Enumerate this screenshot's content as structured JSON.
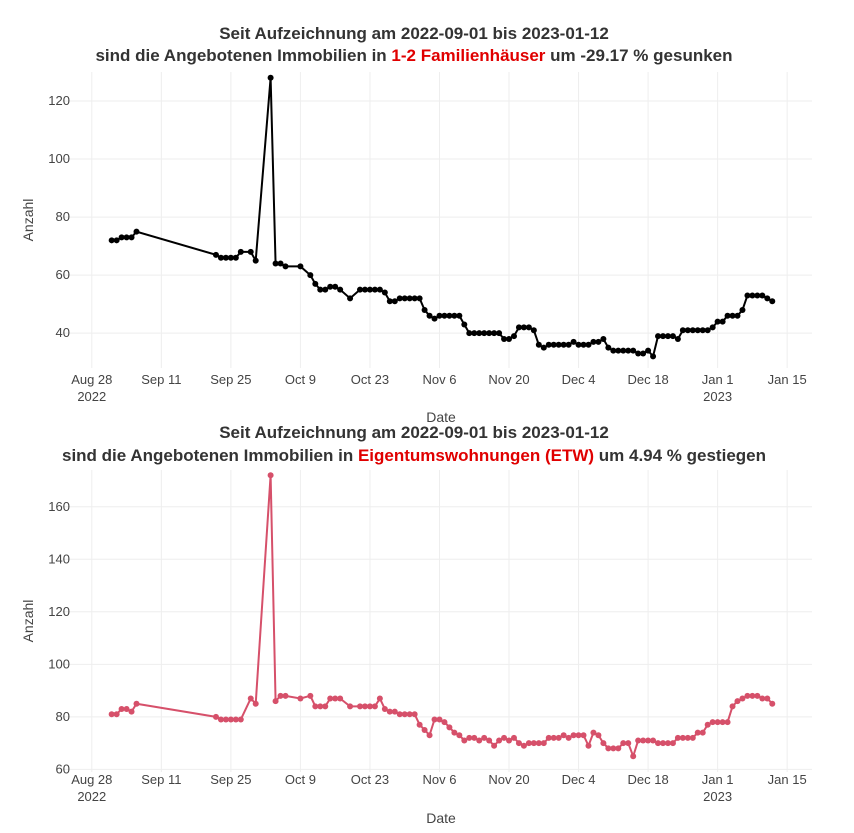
{
  "chart_data": [
    {
      "type": "line",
      "title": "Seit Aufzeichnung am 2022-09-01 bis  2023-01-12",
      "subtitle_parts": [
        {
          "text": "sind die Angebotenen Immobilien in "
        },
        {
          "text": "1-2 Familienhäuser",
          "color": "#e00000"
        },
        {
          "text": "  um -29.17 % gesunken"
        }
      ],
      "xlabel": "Date",
      "ylabel": "Anzahl",
      "color": "#000000",
      "grid": true,
      "xlim": [
        "2022-08-22",
        "2023-01-20"
      ],
      "ylim": [
        28,
        130
      ],
      "yticks": [
        40,
        60,
        80,
        100,
        120
      ],
      "xticks": [
        {
          "value": "2022-08-28",
          "label": "Aug 28\n2022"
        },
        {
          "value": "2022-09-11",
          "label": "Sep 11"
        },
        {
          "value": "2022-09-25",
          "label": "Sep 25"
        },
        {
          "value": "2022-10-09",
          "label": "Oct 9"
        },
        {
          "value": "2022-10-23",
          "label": "Oct 23"
        },
        {
          "value": "2022-11-06",
          "label": "Nov 6"
        },
        {
          "value": "2022-11-20",
          "label": "Nov 20"
        },
        {
          "value": "2022-12-04",
          "label": "Dec 4"
        },
        {
          "value": "2022-12-18",
          "label": "Dec 18"
        },
        {
          "value": "2023-01-01",
          "label": "Jan 1\n2023"
        },
        {
          "value": "2023-01-15",
          "label": "Jan 15"
        }
      ],
      "x": [
        "2022-09-01",
        "2022-09-02",
        "2022-09-03",
        "2022-09-04",
        "2022-09-05",
        "2022-09-06",
        "2022-09-22",
        "2022-09-23",
        "2022-09-24",
        "2022-09-25",
        "2022-09-26",
        "2022-09-27",
        "2022-09-29",
        "2022-09-30",
        "2022-10-03",
        "2022-10-04",
        "2022-10-05",
        "2022-10-06",
        "2022-10-09",
        "2022-10-11",
        "2022-10-12",
        "2022-10-13",
        "2022-10-14",
        "2022-10-15",
        "2022-10-16",
        "2022-10-17",
        "2022-10-19",
        "2022-10-21",
        "2022-10-22",
        "2022-10-23",
        "2022-10-24",
        "2022-10-25",
        "2022-10-26",
        "2022-10-27",
        "2022-10-28",
        "2022-10-29",
        "2022-10-30",
        "2022-10-31",
        "2022-11-01",
        "2022-11-02",
        "2022-11-03",
        "2022-11-04",
        "2022-11-05",
        "2022-11-06",
        "2022-11-07",
        "2022-11-08",
        "2022-11-09",
        "2022-11-10",
        "2022-11-11",
        "2022-11-12",
        "2022-11-13",
        "2022-11-14",
        "2022-11-15",
        "2022-11-16",
        "2022-11-17",
        "2022-11-18",
        "2022-11-19",
        "2022-11-20",
        "2022-11-21",
        "2022-11-22",
        "2022-11-23",
        "2022-11-24",
        "2022-11-25",
        "2022-11-26",
        "2022-11-27",
        "2022-11-28",
        "2022-11-29",
        "2022-11-30",
        "2022-12-01",
        "2022-12-02",
        "2022-12-03",
        "2022-12-04",
        "2022-12-05",
        "2022-12-06",
        "2022-12-07",
        "2022-12-08",
        "2022-12-09",
        "2022-12-10",
        "2022-12-11",
        "2022-12-12",
        "2022-12-13",
        "2022-12-14",
        "2022-12-15",
        "2022-12-16",
        "2022-12-17",
        "2022-12-18",
        "2022-12-19",
        "2022-12-20",
        "2022-12-21",
        "2022-12-22",
        "2022-12-23",
        "2022-12-24",
        "2022-12-25",
        "2022-12-26",
        "2022-12-27",
        "2022-12-28",
        "2022-12-29",
        "2022-12-30",
        "2022-12-31",
        "2023-01-01",
        "2023-01-02",
        "2023-01-03",
        "2023-01-04",
        "2023-01-05",
        "2023-01-06",
        "2023-01-07",
        "2023-01-08",
        "2023-01-09",
        "2023-01-10",
        "2023-01-11",
        "2023-01-12"
      ],
      "values": [
        72,
        72,
        73,
        73,
        73,
        75,
        67,
        66,
        66,
        66,
        66,
        68,
        68,
        65,
        128,
        64,
        64,
        63,
        63,
        60,
        57,
        55,
        55,
        56,
        56,
        55,
        52,
        55,
        55,
        55,
        55,
        55,
        54,
        51,
        51,
        52,
        52,
        52,
        52,
        52,
        48,
        46,
        45,
        46,
        46,
        46,
        46,
        46,
        43,
        40,
        40,
        40,
        40,
        40,
        40,
        40,
        38,
        38,
        39,
        42,
        42,
        42,
        41,
        36,
        35,
        36,
        36,
        36,
        36,
        36,
        37,
        36,
        36,
        36,
        37,
        37,
        38,
        35,
        34,
        34,
        34,
        34,
        34,
        33,
        33,
        34,
        32,
        39,
        39,
        39,
        39,
        38,
        41,
        41,
        41,
        41,
        41,
        41,
        42,
        44,
        44,
        46,
        46,
        46,
        48,
        53,
        53,
        53,
        53,
        52,
        51
      ]
    },
    {
      "type": "line",
      "title": "Seit Aufzeichnung am 2022-09-01 bis  2023-01-12",
      "subtitle_parts": [
        {
          "text": "sind die Angebotenen Immobilien in "
        },
        {
          "text": "Eigentumswohnungen (ETW)",
          "color": "#e00000"
        },
        {
          "text": "  um 4.94 % gestiegen"
        }
      ],
      "xlabel": "Date",
      "ylabel": "Anzahl",
      "color": "#d6506a",
      "grid": true,
      "xlim": [
        "2022-08-22",
        "2023-01-20"
      ],
      "ylim": [
        59,
        174
      ],
      "yticks": [
        60,
        80,
        100,
        120,
        140,
        160
      ],
      "xticks": [
        {
          "value": "2022-08-28",
          "label": "Aug 28\n2022"
        },
        {
          "value": "2022-09-11",
          "label": "Sep 11"
        },
        {
          "value": "2022-09-25",
          "label": "Sep 25"
        },
        {
          "value": "2022-10-09",
          "label": "Oct 9"
        },
        {
          "value": "2022-10-23",
          "label": "Oct 23"
        },
        {
          "value": "2022-11-06",
          "label": "Nov 6"
        },
        {
          "value": "2022-11-20",
          "label": "Nov 20"
        },
        {
          "value": "2022-12-04",
          "label": "Dec 4"
        },
        {
          "value": "2022-12-18",
          "label": "Dec 18"
        },
        {
          "value": "2023-01-01",
          "label": "Jan 1\n2023"
        },
        {
          "value": "2023-01-15",
          "label": "Jan 15"
        }
      ],
      "x": [
        "2022-09-01",
        "2022-09-02",
        "2022-09-03",
        "2022-09-04",
        "2022-09-05",
        "2022-09-06",
        "2022-09-22",
        "2022-09-23",
        "2022-09-24",
        "2022-09-25",
        "2022-09-26",
        "2022-09-27",
        "2022-09-29",
        "2022-09-30",
        "2022-10-03",
        "2022-10-04",
        "2022-10-05",
        "2022-10-06",
        "2022-10-09",
        "2022-10-11",
        "2022-10-12",
        "2022-10-13",
        "2022-10-14",
        "2022-10-15",
        "2022-10-16",
        "2022-10-17",
        "2022-10-19",
        "2022-10-21",
        "2022-10-22",
        "2022-10-23",
        "2022-10-24",
        "2022-10-25",
        "2022-10-26",
        "2022-10-27",
        "2022-10-28",
        "2022-10-29",
        "2022-10-30",
        "2022-10-31",
        "2022-11-01",
        "2022-11-02",
        "2022-11-03",
        "2022-11-04",
        "2022-11-05",
        "2022-11-06",
        "2022-11-07",
        "2022-11-08",
        "2022-11-09",
        "2022-11-10",
        "2022-11-11",
        "2022-11-12",
        "2022-11-13",
        "2022-11-14",
        "2022-11-15",
        "2022-11-16",
        "2022-11-17",
        "2022-11-18",
        "2022-11-19",
        "2022-11-20",
        "2022-11-21",
        "2022-11-22",
        "2022-11-23",
        "2022-11-24",
        "2022-11-25",
        "2022-11-26",
        "2022-11-27",
        "2022-11-28",
        "2022-11-29",
        "2022-11-30",
        "2022-12-01",
        "2022-12-02",
        "2022-12-03",
        "2022-12-04",
        "2022-12-05",
        "2022-12-06",
        "2022-12-07",
        "2022-12-08",
        "2022-12-09",
        "2022-12-10",
        "2022-12-11",
        "2022-12-12",
        "2022-12-13",
        "2022-12-14",
        "2022-12-15",
        "2022-12-16",
        "2022-12-17",
        "2022-12-18",
        "2022-12-19",
        "2022-12-20",
        "2022-12-21",
        "2022-12-22",
        "2022-12-23",
        "2022-12-24",
        "2022-12-25",
        "2022-12-26",
        "2022-12-27",
        "2022-12-28",
        "2022-12-29",
        "2022-12-30",
        "2022-12-31",
        "2023-01-01",
        "2023-01-02",
        "2023-01-03",
        "2023-01-04",
        "2023-01-05",
        "2023-01-06",
        "2023-01-07",
        "2023-01-08",
        "2023-01-09",
        "2023-01-10",
        "2023-01-11",
        "2023-01-12"
      ],
      "values": [
        81,
        81,
        83,
        83,
        82,
        85,
        80,
        79,
        79,
        79,
        79,
        79,
        87,
        85,
        172,
        86,
        88,
        88,
        87,
        88,
        84,
        84,
        84,
        87,
        87,
        87,
        84,
        84,
        84,
        84,
        84,
        87,
        83,
        82,
        82,
        81,
        81,
        81,
        81,
        77,
        75,
        73,
        79,
        79,
        78,
        76,
        74,
        73,
        71,
        72,
        72,
        71,
        72,
        71,
        69,
        71,
        72,
        71,
        72,
        70,
        69,
        70,
        70,
        70,
        70,
        72,
        72,
        72,
        73,
        72,
        73,
        73,
        73,
        69,
        74,
        73,
        70,
        68,
        68,
        68,
        70,
        70,
        65,
        71,
        71,
        71,
        71,
        70,
        70,
        70,
        70,
        72,
        72,
        72,
        72,
        74,
        74,
        77,
        78,
        78,
        78,
        78,
        84,
        86,
        87,
        88,
        88,
        88,
        87,
        87,
        85
      ]
    }
  ]
}
